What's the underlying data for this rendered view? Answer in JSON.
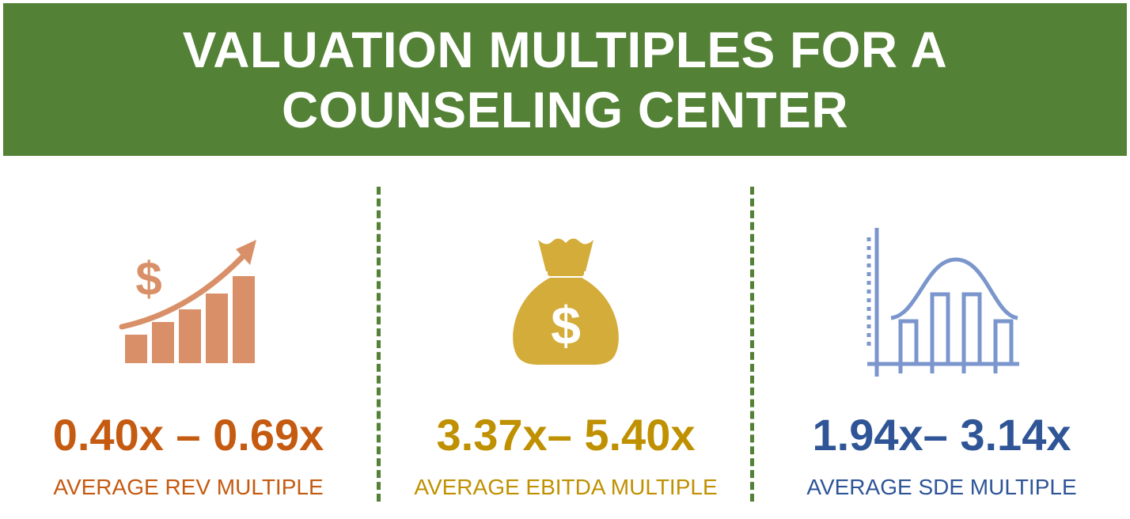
{
  "banner": {
    "line1": "VALUATION MULTIPLES FOR A",
    "line2": "COUNSELING CENTER"
  },
  "colors": {
    "banner": "#538135",
    "rev": "#C55A11",
    "rev_icon": "#D99068",
    "ebitda": "#BF9000",
    "ebitda_icon": "#D4AC3A",
    "sde": "#2F5597",
    "sde_icon": "#7B96CC"
  },
  "columns": [
    {
      "icon": "growth-chart-dollar-icon",
      "multiple": "0.40x – 0.69x",
      "label": "AVERAGE REV MULTIPLE"
    },
    {
      "icon": "money-bag-icon",
      "multiple": "3.37x– 5.40x",
      "label": "AVERAGE EBITDA MULTIPLE"
    },
    {
      "icon": "bell-curve-histogram-icon",
      "multiple": "1.94x– 3.14x",
      "label": "AVERAGE SDE MULTIPLE"
    }
  ]
}
